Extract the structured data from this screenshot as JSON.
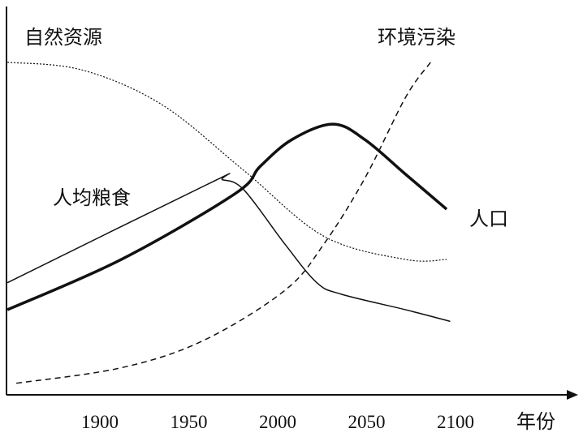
{
  "chart_data": {
    "type": "line",
    "title": "",
    "xlabel": "年份",
    "ylabel": "",
    "xlim": [
      1848,
      2110
    ],
    "ylim": [
      0,
      100
    ],
    "xticks": [
      1900,
      1950,
      2000,
      2050,
      2100
    ],
    "grid": false,
    "series": [
      {
        "name": "自然资源",
        "style": "dotted",
        "x": [
          1848,
          1890,
          1935,
          1981,
          2026,
          2072,
          2095
        ],
        "values": [
          86,
          84,
          75,
          58,
          41,
          35,
          35
        ]
      },
      {
        "name": "环境污染",
        "style": "dashed",
        "x": [
          1853,
          1912,
          1958,
          2004,
          2026,
          2049,
          2072,
          2086
        ],
        "values": [
          3,
          7,
          14,
          27,
          39,
          56,
          77,
          86
        ]
      },
      {
        "name": "人均粮食",
        "style": "thin-solid",
        "x": [
          1848,
          1963,
          1969,
          1981,
          2004,
          2022,
          2036,
          2072,
          2097
        ],
        "values": [
          29,
          55,
          55.6,
          53,
          39,
          29,
          26,
          22,
          19
        ]
      },
      {
        "name": "人口",
        "style": "thick-solid",
        "x": [
          1848,
          1912,
          1976,
          1990,
          2008,
          2031,
          2049,
          2072,
          2095
        ],
        "values": [
          22,
          35,
          52,
          59,
          66,
          70,
          66,
          57,
          48
        ]
      }
    ]
  }
}
